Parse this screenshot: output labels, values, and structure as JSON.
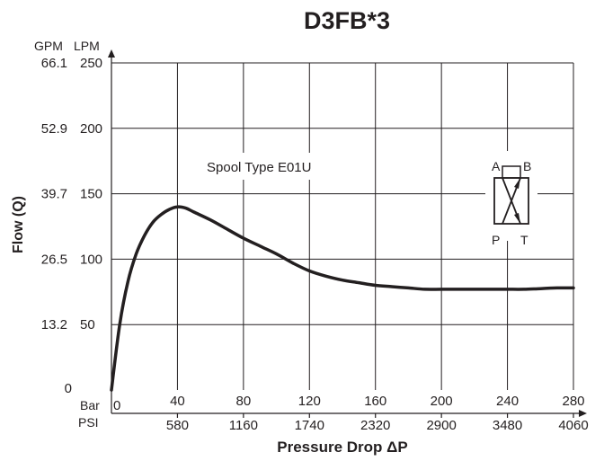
{
  "chart_data": {
    "type": "line",
    "title": "D3FB*3",
    "xlabel": "Pressure Drop ΔP",
    "ylabel": "Flow (Q)",
    "x_units": {
      "primary": "Bar",
      "secondary": "PSI"
    },
    "y_units": {
      "primary": "LPM",
      "secondary": "GPM"
    },
    "xlim": [
      0,
      280
    ],
    "ylim": [
      0,
      250
    ],
    "x_ticks": [
      {
        "bar": "0",
        "psi": ""
      },
      {
        "bar": "40",
        "psi": "580"
      },
      {
        "bar": "80",
        "psi": "1160"
      },
      {
        "bar": "120",
        "psi": "1740"
      },
      {
        "bar": "160",
        "psi": "2320"
      },
      {
        "bar": "200",
        "psi": "2900"
      },
      {
        "bar": "240",
        "psi": "3480"
      },
      {
        "bar": "280",
        "psi": "4060"
      }
    ],
    "y_ticks": [
      {
        "lpm": "",
        "gpm": "0"
      },
      {
        "lpm": "50",
        "gpm": "13.2"
      },
      {
        "lpm": "100",
        "gpm": "26.5"
      },
      {
        "lpm": "150",
        "gpm": "39.7"
      },
      {
        "lpm": "200",
        "gpm": "52.9"
      },
      {
        "lpm": "250",
        "gpm": "66.1"
      }
    ],
    "grid": true,
    "annotation": "Spool Type E01U",
    "series": [
      {
        "points": [
          [
            0,
            0
          ],
          [
            5,
            50
          ],
          [
            10,
            83
          ],
          [
            15,
            104
          ],
          [
            20,
            118
          ],
          [
            25,
            128
          ],
          [
            30,
            134
          ],
          [
            35,
            138
          ],
          [
            40,
            140
          ],
          [
            45,
            139
          ],
          [
            50,
            136
          ],
          [
            60,
            130
          ],
          [
            70,
            123
          ],
          [
            80,
            116
          ],
          [
            90,
            110
          ],
          [
            100,
            104
          ],
          [
            110,
            97
          ],
          [
            120,
            91
          ],
          [
            130,
            87
          ],
          [
            140,
            84
          ],
          [
            150,
            82
          ],
          [
            160,
            80
          ],
          [
            170,
            79
          ],
          [
            180,
            78
          ],
          [
            190,
            77
          ],
          [
            200,
            77
          ],
          [
            210,
            77
          ],
          [
            220,
            77
          ],
          [
            230,
            77
          ],
          [
            240,
            77
          ],
          [
            250,
            77
          ],
          [
            260,
            77.5
          ],
          [
            270,
            78
          ],
          [
            280,
            78
          ]
        ]
      }
    ]
  },
  "spool_symbol": {
    "ports": {
      "a": "A",
      "b": "B",
      "p": "P",
      "t": "T"
    }
  }
}
